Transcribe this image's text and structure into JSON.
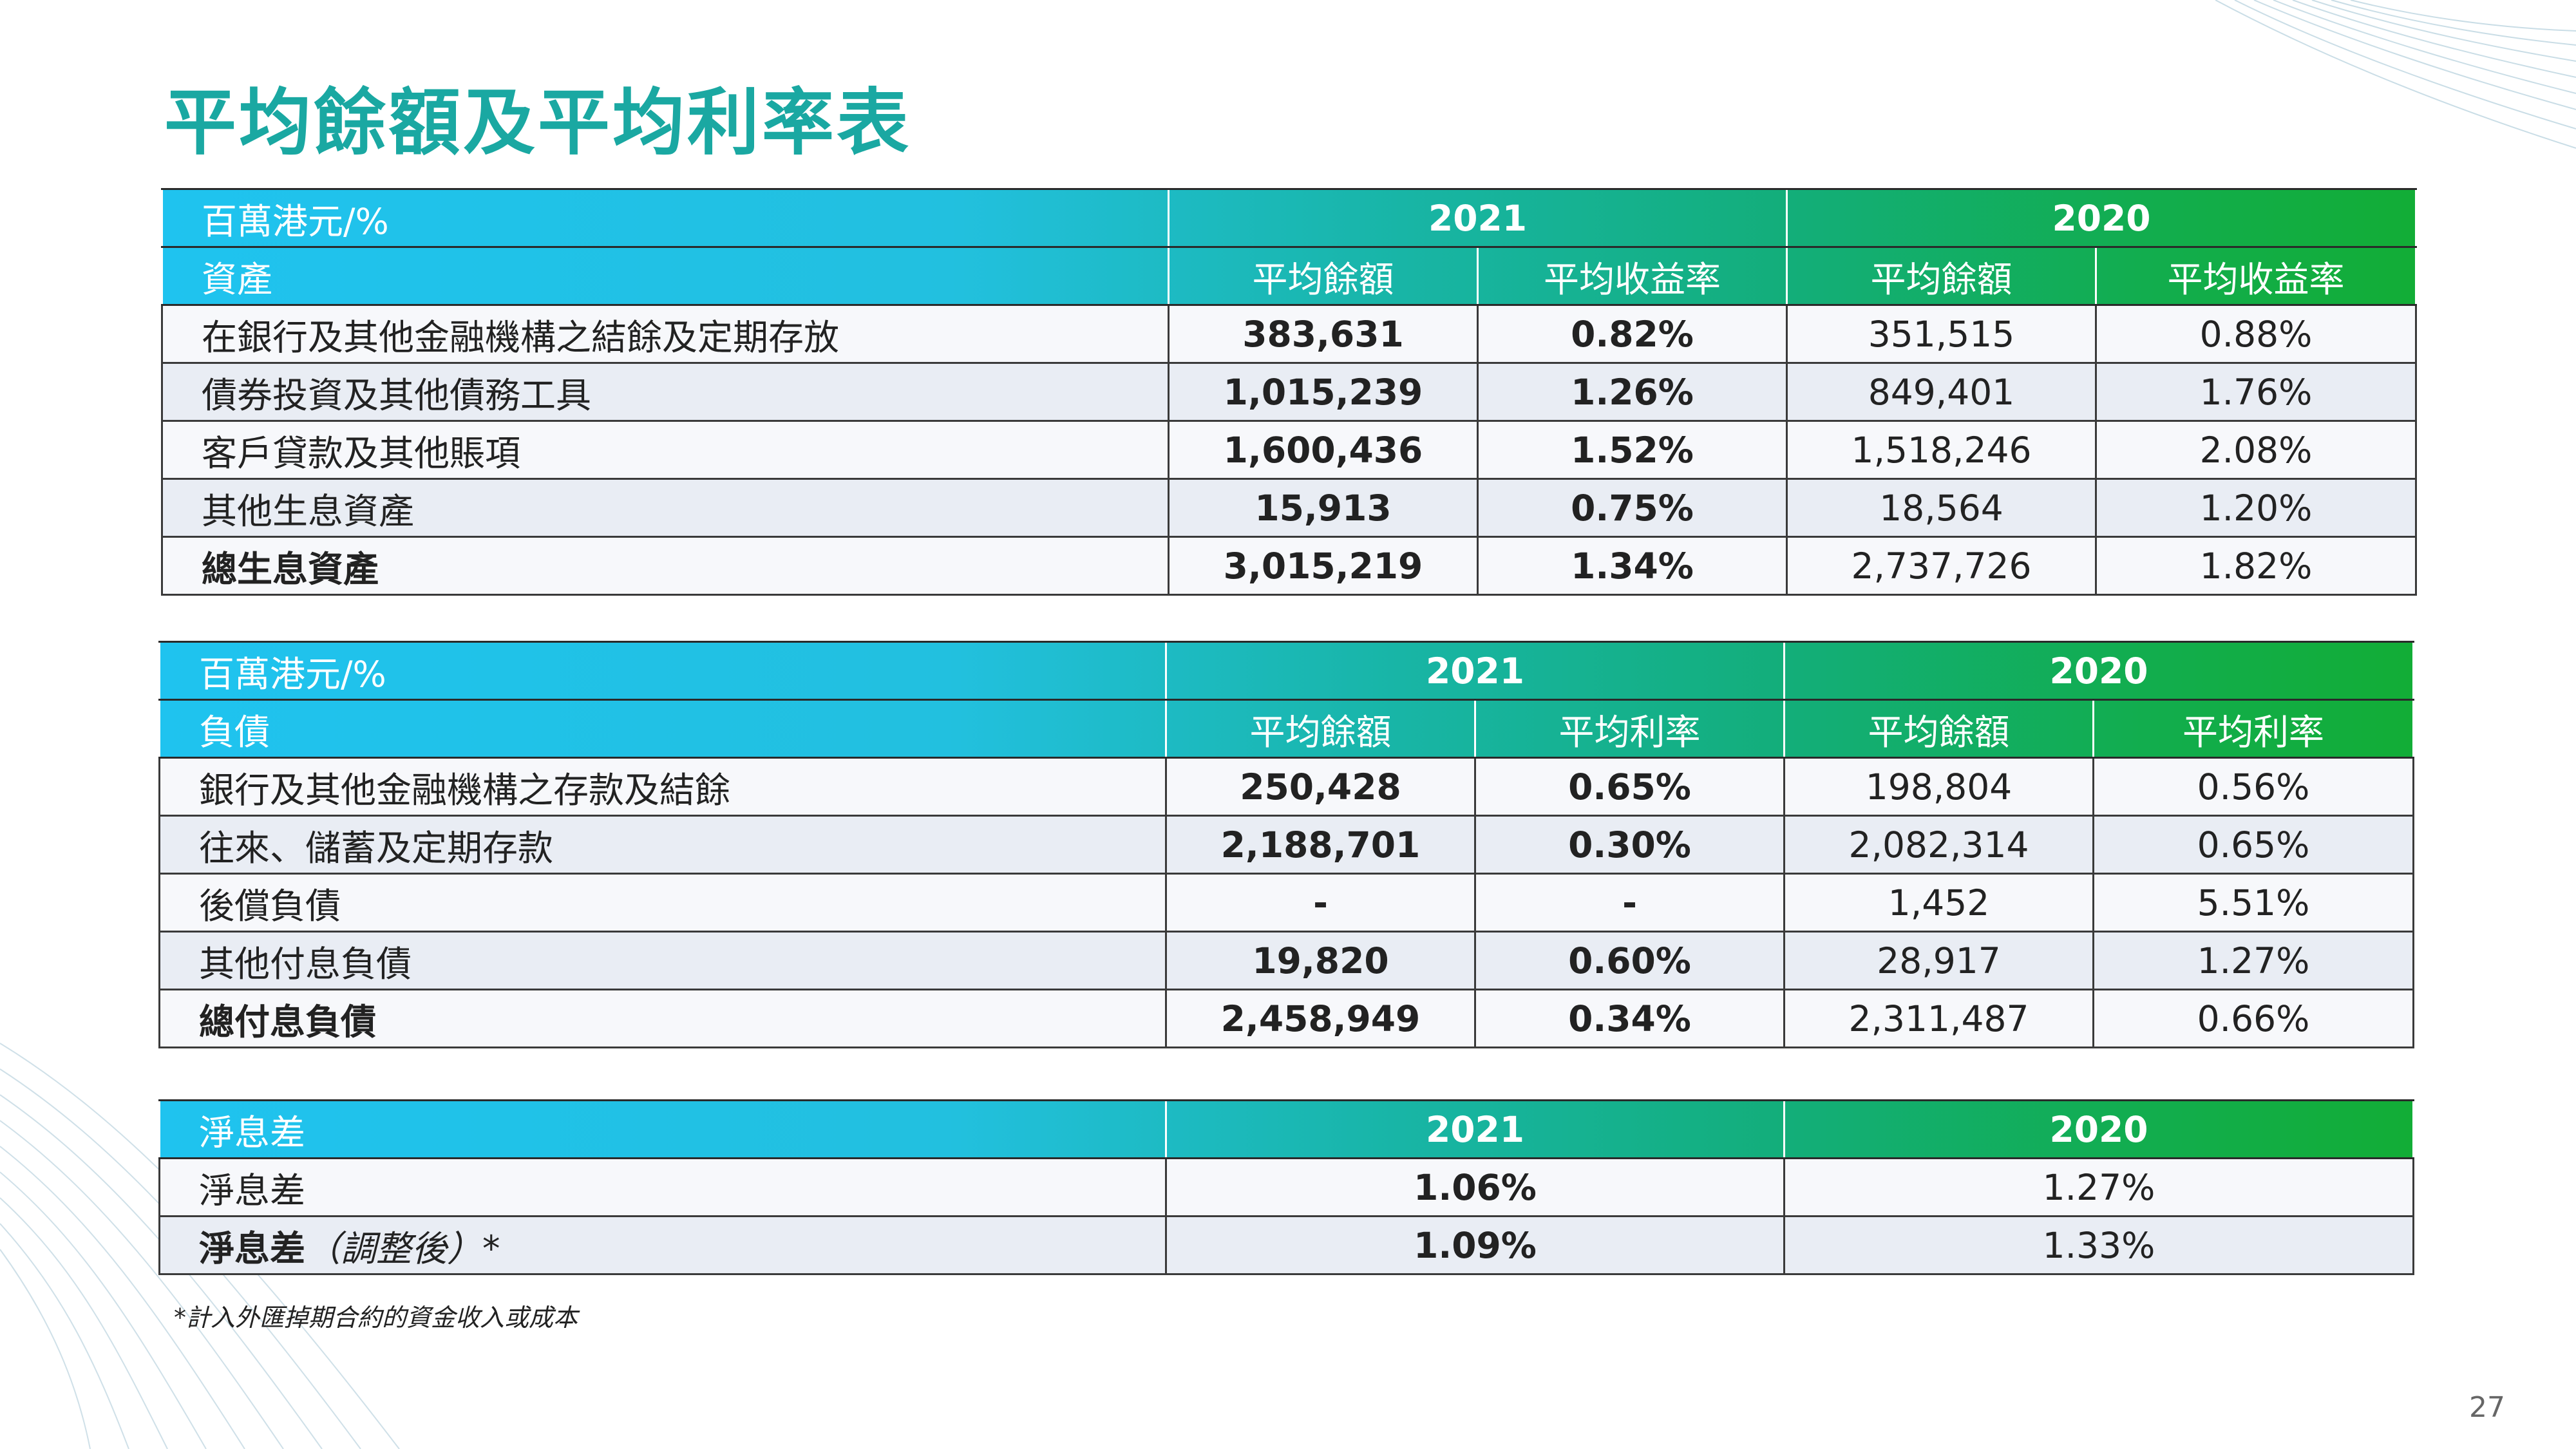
{
  "title": "平均餘額及平均利率表",
  "assets": {
    "unit": "百萬港元/%",
    "section": "資產",
    "year_current": "2021",
    "year_prior": "2020",
    "col_balance": "平均餘額",
    "col_rate": "平均收益率",
    "rows": [
      {
        "label": "在銀行及其他金融機構之結餘及定期存放",
        "bal_2021": "383,631",
        "rate_2021": "0.82%",
        "bal_2020": "351,515",
        "rate_2020": "0.88%"
      },
      {
        "label": "債券投資及其他債務工具",
        "bal_2021": "1,015,239",
        "rate_2021": "1.26%",
        "bal_2020": "849,401",
        "rate_2020": "1.76%"
      },
      {
        "label": "客戶貸款及其他賬項",
        "bal_2021": "1,600,436",
        "rate_2021": "1.52%",
        "bal_2020": "1,518,246",
        "rate_2020": "2.08%"
      },
      {
        "label": "其他生息資產",
        "bal_2021": "15,913",
        "rate_2021": "0.75%",
        "bal_2020": "18,564",
        "rate_2020": "1.20%"
      },
      {
        "label": "總生息資產",
        "bal_2021": "3,015,219",
        "rate_2021": "1.34%",
        "bal_2020": "2,737,726",
        "rate_2020": "1.82%"
      }
    ]
  },
  "liabilities": {
    "unit": "百萬港元/%",
    "section": "負債",
    "year_current": "2021",
    "year_prior": "2020",
    "col_balance": "平均餘額",
    "col_rate": "平均利率",
    "rows": [
      {
        "label": "銀行及其他金融機構之存款及結餘",
        "bal_2021": "250,428",
        "rate_2021": "0.65%",
        "bal_2020": "198,804",
        "rate_2020": "0.56%"
      },
      {
        "label": "往來、儲蓄及定期存款",
        "bal_2021": "2,188,701",
        "rate_2021": "0.30%",
        "bal_2020": "2,082,314",
        "rate_2020": "0.65%"
      },
      {
        "label": "後償負債",
        "bal_2021": "-",
        "rate_2021": "-",
        "bal_2020": "1,452",
        "rate_2020": "5.51%"
      },
      {
        "label": "其他付息負債",
        "bal_2021": "19,820",
        "rate_2021": "0.60%",
        "bal_2020": "28,917",
        "rate_2020": "1.27%"
      },
      {
        "label": "總付息負債",
        "bal_2021": "2,458,949",
        "rate_2021": "0.34%",
        "bal_2020": "2,311,487",
        "rate_2020": "0.66%"
      }
    ]
  },
  "nim": {
    "section": "淨息差",
    "year_current": "2021",
    "year_prior": "2020",
    "rows": [
      {
        "label": "淨息差",
        "label_note": "",
        "v_2021": "1.06%",
        "v_2020": "1.27%"
      },
      {
        "label": "淨息差",
        "label_note": "（調整後）*",
        "v_2021": "1.09%",
        "v_2020": "1.33%"
      }
    ]
  },
  "footnote": "*計入外匯掉期合約的資金收入或成本",
  "page_number": "27",
  "colors": {
    "title": "#1aa8a2",
    "header_start": "#1fc3ef",
    "header_end": "#12ad36"
  }
}
